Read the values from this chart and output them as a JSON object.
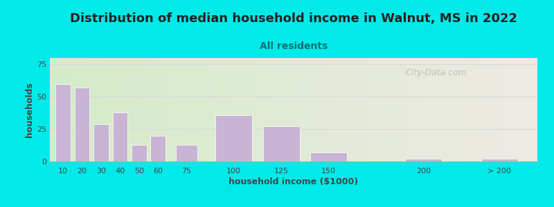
{
  "title": "Distribution of median household income in Walnut, MS in 2022",
  "subtitle": "All residents",
  "xlabel": "household income ($1000)",
  "ylabel": "households",
  "bar_labels": [
    "10",
    "20",
    "30",
    "40",
    "50",
    "60",
    "75",
    "100",
    "125",
    "150",
    "200",
    "> 200"
  ],
  "bar_values": [
    60,
    57,
    29,
    38,
    13,
    20,
    13,
    36,
    27,
    7,
    2,
    2
  ],
  "bar_color": "#c8b4d4",
  "bar_edge_color": "#ffffff",
  "ylim": [
    0,
    80
  ],
  "yticks": [
    0,
    25,
    50,
    75
  ],
  "background_color": "#00eaea",
  "plot_bg_color_left": "#d4ecc8",
  "plot_bg_color_right": "#eeeae4",
  "grid_color": "#d8d8d8",
  "title_fontsize": 13,
  "subtitle_fontsize": 10,
  "title_color": "#222222",
  "subtitle_color": "#007070",
  "axis_label_fontsize": 9,
  "tick_fontsize": 8,
  "watermark_text": "City-Data.com",
  "watermark_color": "#b8b8b8",
  "x_positions": [
    10,
    20,
    30,
    40,
    50,
    60,
    75,
    100,
    125,
    150,
    200,
    240
  ],
  "bar_widths": [
    9,
    9,
    9,
    9,
    9,
    9,
    13,
    22,
    22,
    22,
    22,
    22
  ],
  "xlim": [
    3,
    260
  ]
}
